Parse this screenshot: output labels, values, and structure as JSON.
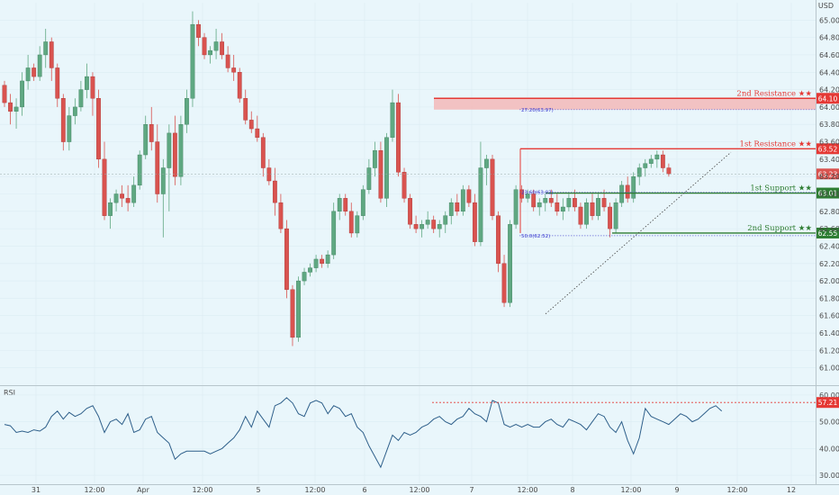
{
  "chart_data": [
    {
      "type": "candlestick",
      "currency": "USD",
      "ylim": [
        60.8,
        65.2
      ],
      "y_ticks": [
        61.0,
        61.2,
        61.4,
        61.6,
        61.8,
        62.0,
        62.2,
        62.4,
        62.6,
        62.8,
        63.0,
        63.2,
        63.4,
        63.6,
        63.8,
        64.0,
        64.2,
        64.4,
        64.6,
        64.8,
        65.0
      ],
      "x_tick_labels": [
        "31",
        "12:00",
        "Apr",
        "12:00",
        "5",
        "12:00",
        "6",
        "12:00",
        "7",
        "12:00",
        "8",
        "12:00",
        "9",
        "12:00",
        "12"
      ],
      "last_price": 63.23,
      "candles": [
        [
          64.25,
          64.3,
          64.0,
          64.05
        ],
        [
          64.05,
          64.15,
          63.8,
          63.95
        ],
        [
          63.95,
          64.1,
          63.75,
          64.0
        ],
        [
          64.0,
          64.4,
          63.9,
          64.3
        ],
        [
          64.3,
          64.6,
          64.2,
          64.45
        ],
        [
          64.45,
          64.5,
          64.3,
          64.35
        ],
        [
          64.35,
          64.7,
          64.3,
          64.6
        ],
        [
          64.6,
          64.9,
          64.45,
          64.75
        ],
        [
          64.75,
          64.8,
          64.3,
          64.45
        ],
        [
          64.45,
          64.5,
          64.0,
          64.1
        ],
        [
          64.1,
          64.15,
          63.5,
          63.6
        ],
        [
          63.6,
          64.0,
          63.5,
          63.9
        ],
        [
          63.9,
          64.1,
          63.8,
          64.0
        ],
        [
          64.0,
          64.3,
          63.95,
          64.2
        ],
        [
          64.2,
          64.5,
          64.1,
          64.35
        ],
        [
          64.35,
          64.4,
          63.9,
          64.1
        ],
        [
          64.1,
          64.2,
          63.3,
          63.4
        ],
        [
          63.4,
          63.6,
          62.7,
          62.75
        ],
        [
          62.75,
          62.95,
          62.6,
          62.9
        ],
        [
          62.9,
          63.05,
          62.8,
          63.0
        ],
        [
          63.0,
          63.1,
          62.85,
          62.95
        ],
        [
          62.95,
          63.1,
          62.8,
          62.9
        ],
        [
          62.9,
          63.2,
          62.85,
          63.1
        ],
        [
          63.1,
          63.5,
          63.05,
          63.45
        ],
        [
          63.45,
          63.9,
          63.4,
          63.8
        ],
        [
          63.8,
          64.0,
          63.5,
          63.6
        ],
        [
          63.6,
          63.8,
          62.9,
          63.0
        ],
        [
          63.0,
          63.4,
          62.5,
          63.3
        ],
        [
          63.3,
          63.8,
          62.8,
          63.7
        ],
        [
          63.7,
          63.9,
          63.1,
          63.2
        ],
        [
          63.2,
          63.9,
          63.1,
          63.8
        ],
        [
          63.8,
          64.2,
          63.7,
          64.1
        ],
        [
          64.1,
          65.1,
          64.0,
          64.95
        ],
        [
          64.95,
          65.0,
          64.7,
          64.8
        ],
        [
          64.8,
          64.85,
          64.55,
          64.6
        ],
        [
          64.6,
          64.7,
          64.5,
          64.65
        ],
        [
          64.65,
          64.9,
          64.55,
          64.75
        ],
        [
          64.75,
          64.85,
          64.55,
          64.6
        ],
        [
          64.6,
          64.7,
          64.4,
          64.45
        ],
        [
          64.45,
          64.6,
          64.3,
          64.4
        ],
        [
          64.4,
          64.45,
          64.05,
          64.1
        ],
        [
          64.1,
          64.2,
          63.8,
          63.85
        ],
        [
          63.85,
          63.95,
          63.7,
          63.75
        ],
        [
          63.75,
          63.9,
          63.6,
          63.65
        ],
        [
          63.65,
          63.7,
          63.2,
          63.3
        ],
        [
          63.3,
          63.4,
          63.1,
          63.15
        ],
        [
          63.15,
          63.3,
          62.75,
          62.9
        ],
        [
          62.9,
          63.0,
          62.55,
          62.6
        ],
        [
          62.6,
          62.7,
          61.8,
          61.9
        ],
        [
          61.9,
          61.95,
          61.25,
          61.35
        ],
        [
          61.35,
          62.05,
          61.3,
          62.0
        ],
        [
          62.0,
          62.15,
          61.95,
          62.1
        ],
        [
          62.1,
          62.2,
          62.05,
          62.15
        ],
        [
          62.15,
          62.3,
          62.1,
          62.25
        ],
        [
          62.25,
          62.3,
          62.15,
          62.2
        ],
        [
          62.2,
          62.35,
          62.15,
          62.3
        ],
        [
          62.3,
          62.9,
          62.25,
          62.8
        ],
        [
          62.8,
          63.0,
          62.7,
          62.95
        ],
        [
          62.95,
          63.0,
          62.75,
          62.8
        ],
        [
          62.8,
          62.9,
          62.5,
          62.55
        ],
        [
          62.55,
          62.8,
          62.5,
          62.75
        ],
        [
          62.75,
          63.1,
          62.7,
          63.05
        ],
        [
          63.05,
          63.4,
          63.0,
          63.3
        ],
        [
          63.3,
          63.6,
          63.2,
          63.5
        ],
        [
          63.5,
          63.6,
          62.9,
          62.95
        ],
        [
          62.95,
          63.7,
          62.85,
          63.65
        ],
        [
          63.65,
          64.2,
          63.6,
          64.05
        ],
        [
          64.05,
          64.15,
          63.2,
          63.25
        ],
        [
          63.25,
          63.3,
          62.9,
          62.95
        ],
        [
          62.95,
          63.0,
          62.6,
          62.65
        ],
        [
          62.65,
          62.75,
          62.55,
          62.6
        ],
        [
          62.6,
          62.7,
          62.5,
          62.65
        ],
        [
          62.65,
          62.8,
          62.6,
          62.7
        ],
        [
          62.7,
          62.75,
          62.55,
          62.6
        ],
        [
          62.6,
          62.7,
          62.5,
          62.65
        ],
        [
          62.65,
          62.8,
          62.55,
          62.75
        ],
        [
          62.75,
          62.95,
          62.65,
          62.9
        ],
        [
          62.9,
          63.0,
          62.75,
          62.8
        ],
        [
          62.8,
          63.1,
          62.75,
          63.05
        ],
        [
          63.05,
          63.1,
          62.85,
          62.9
        ],
        [
          62.9,
          63.0,
          62.4,
          62.45
        ],
        [
          62.45,
          63.6,
          62.4,
          63.3
        ],
        [
          63.3,
          63.45,
          63.1,
          63.4
        ],
        [
          63.4,
          63.45,
          62.7,
          62.75
        ],
        [
          62.75,
          62.8,
          62.1,
          62.2
        ],
        [
          62.2,
          62.3,
          61.7,
          61.75
        ],
        [
          61.75,
          62.7,
          61.7,
          62.65
        ],
        [
          62.65,
          63.1,
          62.6,
          63.05
        ],
        [
          63.05,
          63.1,
          62.9,
          62.95
        ],
        [
          62.95,
          63.05,
          62.9,
          63.0
        ],
        [
          63.0,
          63.05,
          62.8,
          62.85
        ],
        [
          62.85,
          62.95,
          62.75,
          62.9
        ],
        [
          62.9,
          63.0,
          62.8,
          62.95
        ],
        [
          62.95,
          63.05,
          62.85,
          62.9
        ],
        [
          62.9,
          63.0,
          62.75,
          62.8
        ],
        [
          62.8,
          62.95,
          62.7,
          62.85
        ],
        [
          62.85,
          63.0,
          62.8,
          62.95
        ],
        [
          62.95,
          63.05,
          62.8,
          62.85
        ],
        [
          62.85,
          62.9,
          62.6,
          62.65
        ],
        [
          62.65,
          62.95,
          62.6,
          62.9
        ],
        [
          62.9,
          63.0,
          62.7,
          62.75
        ],
        [
          62.75,
          63.0,
          62.7,
          62.95
        ],
        [
          62.95,
          63.05,
          62.8,
          62.85
        ],
        [
          62.85,
          62.9,
          62.5,
          62.6
        ],
        [
          62.6,
          62.95,
          62.55,
          62.9
        ],
        [
          62.9,
          63.15,
          62.85,
          63.1
        ],
        [
          63.1,
          63.2,
          62.9,
          62.95
        ],
        [
          62.95,
          63.25,
          62.9,
          63.2
        ],
        [
          63.2,
          63.35,
          63.1,
          63.3
        ],
        [
          63.3,
          63.4,
          63.2,
          63.35
        ],
        [
          63.35,
          63.45,
          63.3,
          63.4
        ],
        [
          63.4,
          63.5,
          63.3,
          63.45
        ],
        [
          63.45,
          63.5,
          63.25,
          63.3
        ],
        [
          63.3,
          63.35,
          63.2,
          63.23
        ]
      ],
      "levels": [
        {
          "name": "2nd Resistance",
          "value": 64.1,
          "color": "#e53935"
        },
        {
          "name": "1st Resistance",
          "value": 63.52,
          "color": "#e53935"
        },
        {
          "name": "1st Support",
          "value": 63.01,
          "color": "#2e7d32"
        },
        {
          "name": "2nd Support",
          "value": 62.55,
          "color": "#2e7d32"
        }
      ],
      "level_tags": [
        "64.10",
        "63.52",
        "63.01",
        "62.55"
      ],
      "last_tag": "63.23",
      "stars": "★★",
      "fib_labels": [
        {
          "text": "27.20(63.97)",
          "value": 63.97
        },
        {
          "text": "23.60(63.02)",
          "value": 63.02
        },
        {
          "text": "50.0(62.52)",
          "value": 62.52
        }
      ]
    },
    {
      "type": "line",
      "title": "RSI",
      "ylim": [
        27,
        63
      ],
      "y_ticks": [
        30.0,
        40.0,
        50.0,
        60.0
      ],
      "y_tick_labels": [
        "30.00",
        "40.00",
        "50.00",
        "60.00"
      ],
      "marker_value": 57.21,
      "marker_tag": "57.21",
      "values": [
        49,
        48.5,
        46,
        46.5,
        46,
        47,
        46.5,
        48,
        52,
        54,
        51,
        53.5,
        52,
        53,
        55,
        56,
        52,
        46,
        50,
        51,
        49,
        53,
        46,
        47,
        51,
        52,
        46,
        44,
        42,
        36,
        38,
        39,
        39,
        39,
        39,
        38,
        39,
        40,
        42,
        44,
        47,
        52,
        48,
        54,
        51,
        48,
        56,
        57,
        59,
        57,
        53,
        52,
        57,
        58,
        57,
        53,
        56,
        55,
        52,
        53,
        48,
        46,
        41,
        37,
        33,
        39,
        45,
        43,
        46,
        45,
        46,
        48,
        49,
        51,
        52,
        50,
        49,
        51,
        52,
        55,
        53,
        52,
        50,
        58,
        57,
        49,
        48,
        49,
        48,
        49,
        48,
        48,
        50,
        51,
        49,
        48,
        51,
        50,
        49,
        47,
        50,
        53,
        52,
        48,
        46,
        50,
        43,
        38,
        44,
        55,
        52,
        51,
        50,
        49,
        51,
        53,
        52,
        50,
        51,
        53,
        55,
        56,
        54
      ]
    }
  ]
}
